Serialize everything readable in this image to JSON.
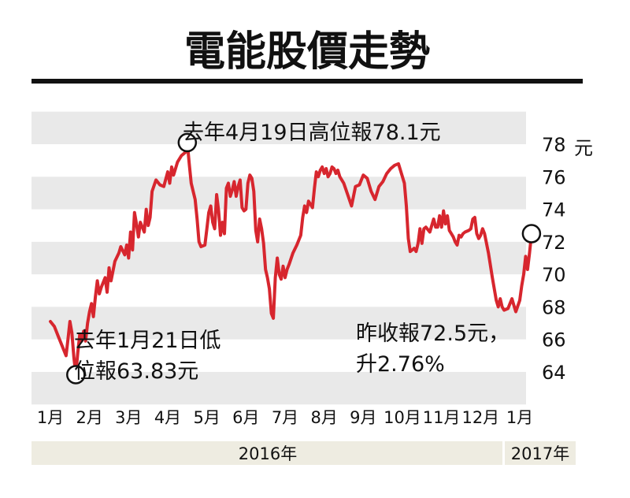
{
  "colors": {
    "line": "#d7262e",
    "band": "#e9e9e9",
    "year_bar": "#eeece1",
    "rule": "#111111",
    "text": "#111111"
  },
  "chart_data": {
    "type": "line",
    "title": "電能股價走勢",
    "unit": "元",
    "ylim": [
      62,
      80
    ],
    "yticks": [
      {
        "value": 64,
        "label": "64"
      },
      {
        "value": 66,
        "label": "66"
      },
      {
        "value": 68,
        "label": "68"
      },
      {
        "value": 70,
        "label": "70"
      },
      {
        "value": 72,
        "label": "72"
      },
      {
        "value": 74,
        "label": "74"
      },
      {
        "value": 76,
        "label": "76"
      },
      {
        "value": 78,
        "label": "78"
      }
    ],
    "months": [
      "1月",
      "2月",
      "3月",
      "4月",
      "5月",
      "6月",
      "7月",
      "8月",
      "9月",
      "10月",
      "11月",
      "12月",
      "1月"
    ],
    "years": [
      "2016年",
      "2017年"
    ],
    "grid_bands": true,
    "series": [
      {
        "values": [
          [
            0.0,
            67.1
          ],
          [
            0.1,
            66.8
          ],
          [
            0.2,
            66.2
          ],
          [
            0.3,
            65.6
          ],
          [
            0.4,
            65.0
          ],
          [
            0.45,
            66.0
          ],
          [
            0.5,
            67.1
          ],
          [
            0.55,
            66.4
          ],
          [
            0.6,
            64.9
          ],
          [
            0.65,
            63.83
          ],
          [
            0.7,
            65.2
          ],
          [
            0.75,
            66.3
          ],
          [
            0.8,
            65.9
          ],
          [
            0.85,
            66.5
          ],
          [
            0.9,
            65.9
          ],
          [
            0.95,
            67.0
          ],
          [
            1.0,
            67.7
          ],
          [
            1.05,
            68.2
          ],
          [
            1.1,
            67.4
          ],
          [
            1.15,
            68.6
          ],
          [
            1.2,
            69.6
          ],
          [
            1.25,
            68.8
          ],
          [
            1.3,
            69.2
          ],
          [
            1.4,
            69.8
          ],
          [
            1.45,
            68.9
          ],
          [
            1.5,
            70.4
          ],
          [
            1.55,
            69.6
          ],
          [
            1.65,
            70.8
          ],
          [
            1.75,
            71.3
          ],
          [
            1.8,
            71.7
          ],
          [
            1.9,
            71.2
          ],
          [
            1.95,
            71.8
          ],
          [
            2.0,
            71.0
          ],
          [
            2.05,
            72.6
          ],
          [
            2.1,
            71.5
          ],
          [
            2.15,
            73.8
          ],
          [
            2.2,
            73.1
          ],
          [
            2.25,
            72.3
          ],
          [
            2.3,
            73.2
          ],
          [
            2.35,
            72.9
          ],
          [
            2.4,
            72.6
          ],
          [
            2.45,
            74.0
          ],
          [
            2.5,
            73.0
          ],
          [
            2.55,
            73.5
          ],
          [
            2.6,
            75.1
          ],
          [
            2.7,
            75.8
          ],
          [
            2.8,
            75.5
          ],
          [
            2.9,
            75.4
          ],
          [
            3.0,
            76.3
          ],
          [
            3.05,
            75.6
          ],
          [
            3.1,
            76.6
          ],
          [
            3.15,
            76.1
          ],
          [
            3.25,
            76.9
          ],
          [
            3.35,
            77.3
          ],
          [
            3.45,
            77.5
          ],
          [
            3.5,
            78.1
          ],
          [
            3.55,
            76.8
          ],
          [
            3.6,
            75.6
          ],
          [
            3.65,
            75.1
          ],
          [
            3.7,
            74.6
          ],
          [
            3.75,
            73.4
          ],
          [
            3.8,
            72.0
          ],
          [
            3.85,
            71.7
          ],
          [
            3.95,
            71.8
          ],
          [
            4.0,
            72.8
          ],
          [
            4.05,
            73.8
          ],
          [
            4.1,
            74.2
          ],
          [
            4.15,
            73.2
          ],
          [
            4.2,
            72.8
          ],
          [
            4.25,
            74.9
          ],
          [
            4.3,
            73.9
          ],
          [
            4.35,
            72.4
          ],
          [
            4.4,
            73.2
          ],
          [
            4.45,
            72.5
          ],
          [
            4.5,
            75.3
          ],
          [
            4.55,
            75.6
          ],
          [
            4.6,
            74.8
          ],
          [
            4.65,
            75.2
          ],
          [
            4.7,
            75.7
          ],
          [
            4.75,
            74.8
          ],
          [
            4.8,
            75.4
          ],
          [
            4.85,
            75.8
          ],
          [
            4.9,
            74.1
          ],
          [
            4.95,
            73.9
          ],
          [
            5.0,
            74.0
          ],
          [
            5.05,
            75.6
          ],
          [
            5.1,
            76.1
          ],
          [
            5.15,
            75.9
          ],
          [
            5.2,
            75.1
          ],
          [
            5.25,
            72.7
          ],
          [
            5.3,
            72.0
          ],
          [
            5.35,
            73.4
          ],
          [
            5.4,
            72.8
          ],
          [
            5.45,
            71.9
          ],
          [
            5.5,
            70.3
          ],
          [
            5.55,
            69.8
          ],
          [
            5.6,
            69.1
          ],
          [
            5.65,
            67.6
          ],
          [
            5.7,
            67.3
          ],
          [
            5.75,
            69.8
          ],
          [
            5.8,
            71.0
          ],
          [
            5.85,
            70.0
          ],
          [
            5.9,
            69.7
          ],
          [
            5.95,
            70.5
          ],
          [
            6.0,
            69.8
          ],
          [
            6.05,
            70.3
          ],
          [
            6.1,
            70.6
          ],
          [
            6.2,
            71.3
          ],
          [
            6.3,
            71.8
          ],
          [
            6.4,
            72.4
          ],
          [
            6.45,
            73.5
          ],
          [
            6.5,
            74.2
          ],
          [
            6.55,
            73.8
          ],
          [
            6.6,
            74.5
          ],
          [
            6.7,
            74.1
          ],
          [
            6.75,
            75.3
          ],
          [
            6.8,
            76.3
          ],
          [
            6.85,
            76.0
          ],
          [
            6.9,
            76.4
          ],
          [
            6.95,
            76.6
          ],
          [
            7.0,
            76.2
          ],
          [
            7.05,
            76.5
          ],
          [
            7.1,
            76.0
          ],
          [
            7.15,
            76.2
          ],
          [
            7.2,
            76.6
          ],
          [
            7.25,
            76.5
          ],
          [
            7.3,
            76.2
          ],
          [
            7.35,
            76.4
          ],
          [
            7.4,
            76.0
          ],
          [
            7.5,
            75.6
          ],
          [
            7.6,
            74.9
          ],
          [
            7.7,
            74.2
          ],
          [
            7.8,
            75.4
          ],
          [
            7.9,
            75.5
          ],
          [
            8.0,
            76.1
          ],
          [
            8.1,
            75.9
          ],
          [
            8.2,
            75.1
          ],
          [
            8.3,
            74.6
          ],
          [
            8.4,
            75.4
          ],
          [
            8.5,
            75.7
          ],
          [
            8.6,
            76.2
          ],
          [
            8.7,
            76.5
          ],
          [
            8.8,
            76.7
          ],
          [
            8.9,
            76.8
          ],
          [
            9.0,
            76.0
          ],
          [
            9.05,
            75.6
          ],
          [
            9.1,
            74.2
          ],
          [
            9.15,
            72.2
          ],
          [
            9.2,
            71.4
          ],
          [
            9.25,
            71.5
          ],
          [
            9.3,
            71.6
          ],
          [
            9.35,
            71.4
          ],
          [
            9.4,
            71.9
          ],
          [
            9.45,
            72.8
          ],
          [
            9.5,
            71.9
          ],
          [
            9.55,
            72.8
          ],
          [
            9.6,
            72.9
          ],
          [
            9.7,
            72.6
          ],
          [
            9.8,
            73.4
          ],
          [
            9.85,
            72.9
          ],
          [
            9.9,
            72.9
          ],
          [
            9.95,
            73.6
          ],
          [
            10.0,
            72.9
          ],
          [
            10.05,
            73.9
          ],
          [
            10.1,
            73.1
          ],
          [
            10.15,
            73.6
          ],
          [
            10.2,
            72.7
          ],
          [
            10.25,
            72.5
          ],
          [
            10.3,
            72.3
          ],
          [
            10.35,
            72.0
          ],
          [
            10.4,
            71.8
          ],
          [
            10.45,
            72.4
          ],
          [
            10.5,
            72.3
          ],
          [
            10.55,
            72.5
          ],
          [
            10.6,
            72.6
          ],
          [
            10.7,
            72.7
          ],
          [
            10.75,
            72.8
          ],
          [
            10.8,
            73.4
          ],
          [
            10.85,
            73.5
          ],
          [
            10.9,
            72.5
          ],
          [
            10.95,
            72.2
          ],
          [
            11.0,
            72.4
          ],
          [
            11.05,
            72.8
          ],
          [
            11.1,
            72.5
          ],
          [
            11.15,
            71.9
          ],
          [
            11.2,
            71.3
          ],
          [
            11.3,
            69.8
          ],
          [
            11.4,
            68.4
          ],
          [
            11.45,
            68.0
          ],
          [
            11.5,
            68.5
          ],
          [
            11.55,
            68.0
          ],
          [
            11.6,
            67.8
          ],
          [
            11.7,
            67.9
          ],
          [
            11.8,
            68.5
          ],
          [
            11.85,
            68.1
          ],
          [
            11.9,
            67.7
          ],
          [
            12.0,
            68.4
          ],
          [
            12.05,
            69.3
          ],
          [
            12.1,
            70.0
          ],
          [
            12.15,
            71.1
          ],
          [
            12.2,
            70.3
          ],
          [
            12.25,
            71.3
          ],
          [
            12.28,
            72.0
          ],
          [
            12.3,
            72.5
          ]
        ]
      }
    ],
    "annotations": {
      "high_label": "去年4月19日高位報78.1元",
      "low_label_1": "去年1月21日低",
      "low_label_2": "位報63.83元",
      "close_label_1": "昨收報72.5元，",
      "close_label_2": "升2.76%"
    },
    "markers": [
      {
        "name": "high",
        "x": 3.5,
        "y": 78.1
      },
      {
        "name": "low",
        "x": 0.65,
        "y": 63.83
      },
      {
        "name": "close",
        "x": 12.3,
        "y": 72.5
      }
    ]
  }
}
